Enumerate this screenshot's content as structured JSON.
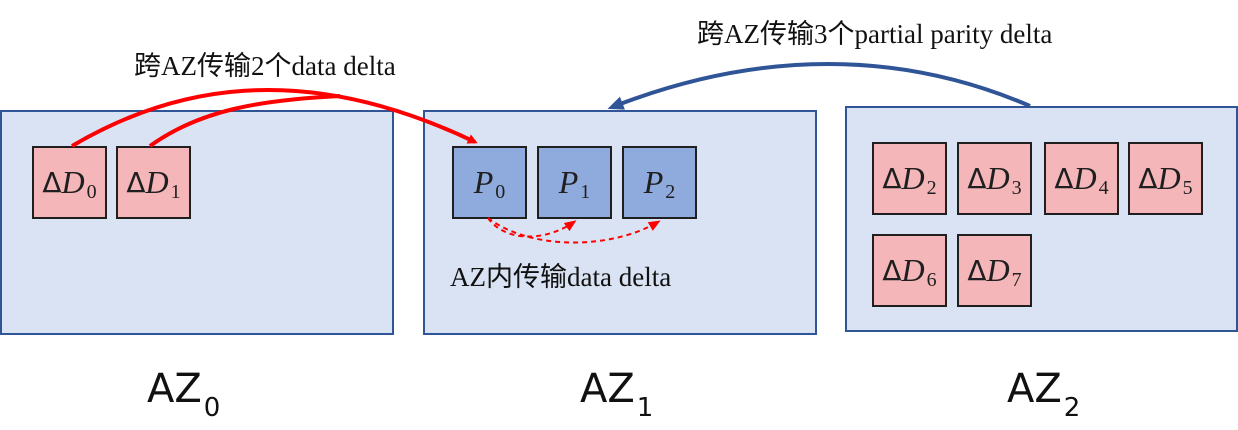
{
  "colors": {
    "az_fill": "#dae3f3",
    "az_border": "#2f5597",
    "data_fill": "#f4b6b8",
    "parity_fill": "#8faadc",
    "red_arrow": "#ff0000",
    "blue_arrow": "#2f5597"
  },
  "labels": {
    "cross_az_data": "跨AZ传输2个data delta",
    "cross_az_parity": "跨AZ传输3个partial parity delta",
    "intra_az_data": "AZ内传输data delta"
  },
  "zones": [
    {
      "name": "AZ",
      "sub": "0"
    },
    {
      "name": "AZ",
      "sub": "1"
    },
    {
      "name": "AZ",
      "sub": "2"
    }
  ],
  "cells": {
    "delta_symbol": "Δ",
    "data_var": "D",
    "parity_var": "P",
    "az0_data": [
      "0",
      "1"
    ],
    "az1_parity": [
      "0",
      "1",
      "2"
    ],
    "az2_data": [
      "2",
      "3",
      "4",
      "5",
      "6",
      "7"
    ]
  }
}
